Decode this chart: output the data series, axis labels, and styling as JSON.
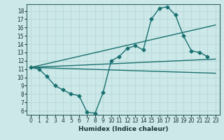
{
  "xlabel": "Humidex (Indice chaleur)",
  "ylabel": "",
  "xlim": [
    -0.5,
    23.5
  ],
  "ylim": [
    5.5,
    18.8
  ],
  "xticks": [
    0,
    1,
    2,
    3,
    4,
    5,
    6,
    7,
    8,
    9,
    10,
    11,
    12,
    13,
    14,
    15,
    16,
    17,
    18,
    19,
    20,
    21,
    22,
    23
  ],
  "yticks": [
    6,
    7,
    8,
    9,
    10,
    11,
    12,
    13,
    14,
    15,
    16,
    17,
    18
  ],
  "bg_color": "#cce8e8",
  "grid_color": "#b8d8d8",
  "line_color": "#1a7070",
  "series": [
    {
      "x": [
        0,
        1,
        2,
        3,
        4,
        5,
        6,
        7,
        8,
        9,
        10,
        11,
        12,
        13,
        14,
        15,
        16,
        17,
        18,
        19,
        20,
        21,
        22
      ],
      "y": [
        11.2,
        11.0,
        10.1,
        9.0,
        8.5,
        8.0,
        7.8,
        5.8,
        5.7,
        8.2,
        12.0,
        12.5,
        13.5,
        13.8,
        13.3,
        17.0,
        18.3,
        18.5,
        17.5,
        15.0,
        13.2,
        13.0,
        12.5
      ],
      "marker": "D",
      "markersize": 2.5,
      "linewidth": 1.0
    },
    {
      "x": [
        0,
        23
      ],
      "y": [
        11.2,
        12.2
      ],
      "marker": null,
      "markersize": 0,
      "linewidth": 1.0
    },
    {
      "x": [
        0,
        23
      ],
      "y": [
        11.2,
        16.3
      ],
      "marker": null,
      "markersize": 0,
      "linewidth": 1.0
    },
    {
      "x": [
        0,
        23
      ],
      "y": [
        11.2,
        10.5
      ],
      "marker": null,
      "markersize": 0,
      "linewidth": 1.0
    }
  ]
}
